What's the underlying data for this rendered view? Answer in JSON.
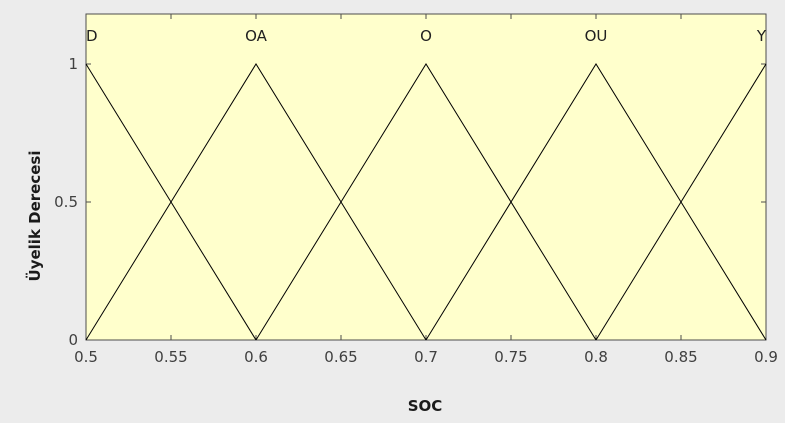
{
  "chart_data": {
    "type": "line",
    "title": "",
    "xlabel": "SOC",
    "ylabel": "Üyelik Derecesi",
    "xlim": [
      0.5,
      0.9
    ],
    "ylim": [
      0,
      1
    ],
    "x_ticks": [
      "0.5",
      "0.55",
      "0.6",
      "0.65",
      "0.7",
      "0.75",
      "0.8",
      "0.85",
      "0.9"
    ],
    "y_ticks": [
      "0",
      "0.5",
      "1"
    ],
    "grid": false,
    "series": [
      {
        "name": "D",
        "x": [
          0.5,
          0.6
        ],
        "y": [
          1,
          0
        ]
      },
      {
        "name": "OA",
        "x": [
          0.5,
          0.6,
          0.7
        ],
        "y": [
          0,
          1,
          0
        ]
      },
      {
        "name": "O",
        "x": [
          0.6,
          0.7,
          0.8
        ],
        "y": [
          0,
          1,
          0
        ]
      },
      {
        "name": "OU",
        "x": [
          0.7,
          0.8,
          0.9
        ],
        "y": [
          0,
          1,
          0
        ]
      },
      {
        "name": "Y",
        "x": [
          0.8,
          0.9
        ],
        "y": [
          0,
          1
        ]
      }
    ]
  },
  "colors": {
    "plot_background": "#ffffcc",
    "figure_background": "#ececec",
    "line": "#000000"
  }
}
